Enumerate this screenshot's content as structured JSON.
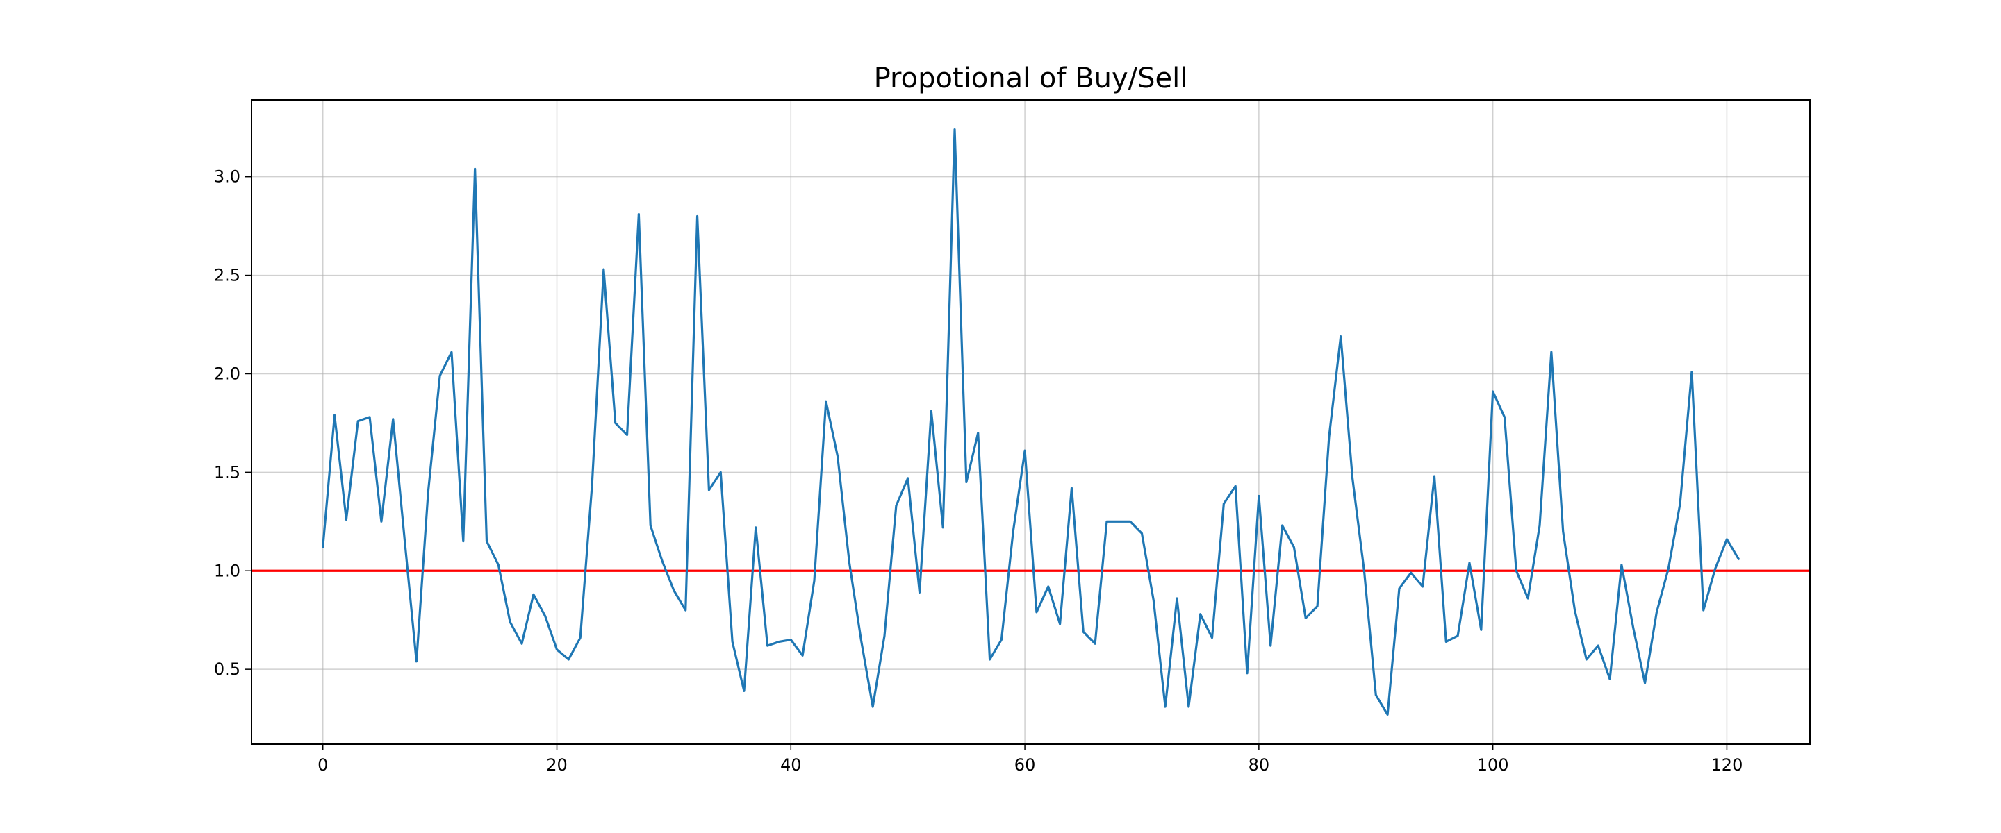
{
  "chart_data": {
    "type": "line",
    "title": "Propotional of Buy/Sell",
    "xlabel": "",
    "ylabel": "",
    "xlim": [
      -6.1,
      127.1
    ],
    "ylim": [
      0.12,
      3.39
    ],
    "x_ticks": [
      0,
      20,
      40,
      60,
      80,
      100,
      120
    ],
    "y_ticks": [
      0.5,
      1.0,
      1.5,
      2.0,
      2.5,
      3.0
    ],
    "x_tick_labels": [
      "0",
      "20",
      "40",
      "60",
      "80",
      "100",
      "120"
    ],
    "y_tick_labels": [
      "0.5",
      "1.0",
      "1.5",
      "2.0",
      "2.5",
      "3.0"
    ],
    "grid": true,
    "series": [
      {
        "color": "#1f77b4",
        "x": [
          0,
          1,
          2,
          3,
          4,
          5,
          6,
          7,
          8,
          9,
          10,
          11,
          12,
          13,
          14,
          15,
          16,
          17,
          18,
          19,
          20,
          21,
          22,
          23,
          24,
          25,
          26,
          27,
          28,
          29,
          30,
          31,
          32,
          33,
          34,
          35,
          36,
          37,
          38,
          39,
          40,
          41,
          42,
          43,
          44,
          45,
          46,
          47,
          48,
          49,
          50,
          51,
          52,
          53,
          54,
          55,
          56,
          57,
          58,
          59,
          60,
          61,
          62,
          63,
          64,
          65,
          66,
          67,
          68,
          69,
          70,
          71,
          72,
          73,
          74,
          75,
          76,
          77,
          78,
          79,
          80,
          81,
          82,
          83,
          84,
          85,
          86,
          87,
          88,
          89,
          90,
          91,
          92,
          93,
          94,
          95,
          96,
          97,
          98,
          99,
          100,
          101,
          102,
          103,
          104,
          105,
          106,
          107,
          108,
          109,
          110,
          111,
          112,
          113,
          114,
          115,
          116,
          117,
          118,
          119,
          120,
          121
        ],
        "values": [
          1.12,
          1.79,
          1.26,
          1.76,
          1.78,
          1.25,
          1.77,
          1.15,
          0.54,
          1.4,
          1.99,
          2.11,
          1.15,
          3.04,
          1.15,
          1.03,
          0.74,
          0.63,
          0.88,
          0.77,
          0.6,
          0.55,
          0.66,
          1.43,
          2.53,
          1.75,
          1.69,
          2.81,
          1.23,
          1.05,
          0.9,
          0.8,
          2.8,
          1.41,
          1.5,
          0.64,
          0.39,
          1.22,
          0.62,
          0.64,
          0.65,
          0.57,
          0.95,
          1.86,
          1.58,
          1.04,
          0.65,
          0.31,
          0.67,
          1.33,
          1.47,
          0.89,
          1.81,
          1.22,
          3.24,
          1.45,
          1.7,
          0.55,
          0.65,
          1.2,
          1.61,
          0.79,
          0.92,
          0.73,
          1.42,
          0.69,
          0.63,
          1.25,
          1.25,
          1.25,
          1.19,
          0.85,
          0.31,
          0.86,
          0.31,
          0.78,
          0.66,
          1.34,
          1.43,
          0.48,
          1.38,
          0.62,
          1.23,
          1.12,
          0.76,
          0.82,
          1.68,
          2.19,
          1.47,
          1.0,
          0.37,
          0.27,
          0.91,
          0.99,
          0.92,
          1.48,
          0.64,
          0.67,
          1.04,
          0.7,
          1.91,
          1.78,
          1.0,
          0.86,
          1.23,
          2.11,
          1.2,
          0.8,
          0.55,
          0.62,
          0.45,
          1.03,
          0.71,
          0.43,
          0.79,
          1.01,
          1.34,
          2.01,
          0.8,
          1.01,
          1.16,
          1.06
        ]
      }
    ],
    "hlines": [
      {
        "y": 1.0,
        "color": "#ff0000"
      }
    ]
  }
}
